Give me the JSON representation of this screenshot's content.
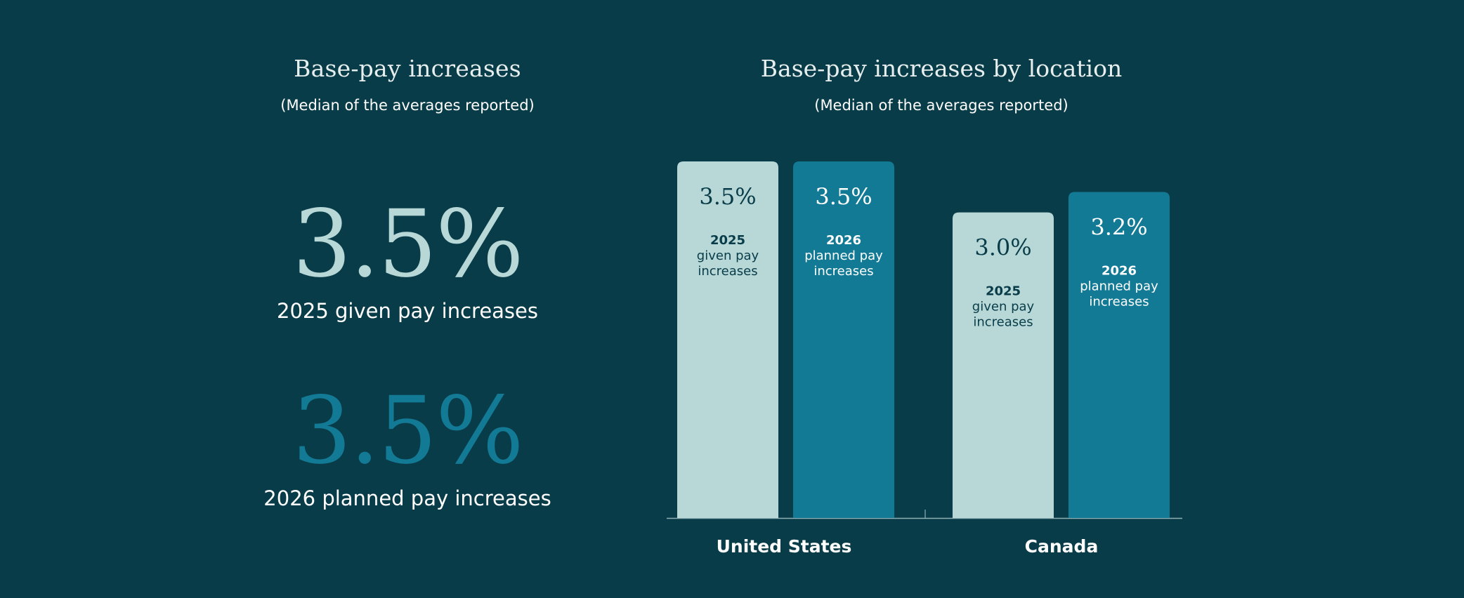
{
  "left": {
    "title": "Base-pay increases",
    "subtitle": "(Median of the averages reported)",
    "stats": [
      {
        "value": "3.5%",
        "label": "2025 given pay increases",
        "color": "#b8d8d8"
      },
      {
        "value": "3.5%",
        "label": "2026 planned pay increases",
        "color": "#137a96"
      }
    ]
  },
  "colors": {
    "background": "#083c48",
    "given": "#b8d8d8",
    "planned": "#137a96"
  },
  "chart_data": {
    "type": "bar",
    "title": "Base-pay increases by location",
    "subtitle": "(Median of the averages reported)",
    "categories": [
      "United States",
      "Canada"
    ],
    "ylim": [
      0,
      3.5
    ],
    "series": [
      {
        "year": "2025",
        "desc_lines": [
          "given pay",
          "increases"
        ],
        "values": [
          3.5,
          3.0
        ],
        "labels": [
          "3.5%",
          "3.0%"
        ],
        "color": "#b8d8d8"
      },
      {
        "year": "2026",
        "desc_lines": [
          "planned pay",
          "increases"
        ],
        "values": [
          3.5,
          3.2
        ],
        "labels": [
          "3.5%",
          "3.2%"
        ],
        "color": "#137a96"
      }
    ]
  }
}
